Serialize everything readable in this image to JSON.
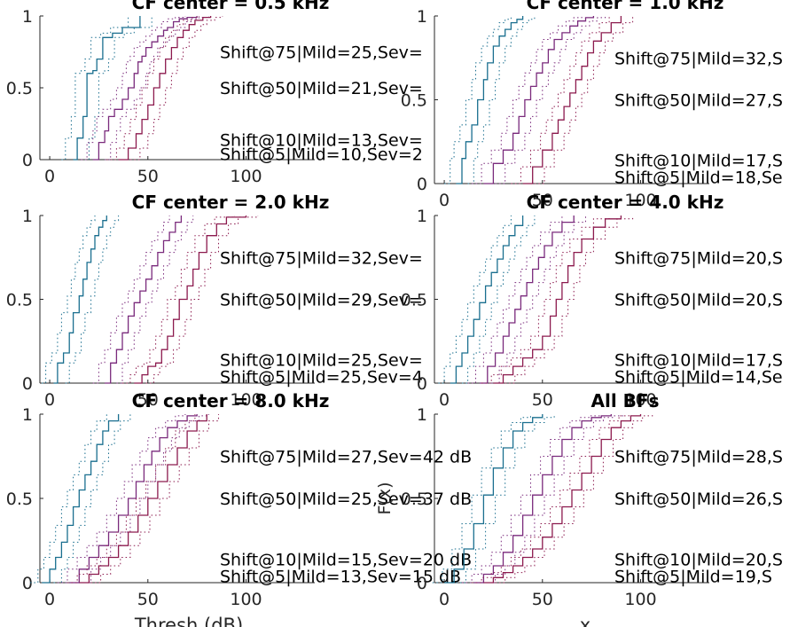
{
  "figure": {
    "xlabel_left": "Thresh (dB)",
    "xlabel_right": "x",
    "ylabel_right": "F(x)"
  },
  "colors": {
    "normal": "#1a6f8f",
    "mild": "#7a2a7c",
    "severe": "#8c1a4e",
    "axis": "#262626"
  },
  "chart_data": [
    {
      "type": "line",
      "title": "CF center = 0.5 kHz",
      "xlim": [
        -5,
        135
      ],
      "ylim": [
        0,
        1
      ],
      "xticks": [
        "0",
        "50",
        "100"
      ],
      "yticks": [
        "0",
        "0.5",
        "1"
      ],
      "annotations": [
        "Shift@75|Mild=25,Sev=",
        "Shift@50|Mild=21,Sev=",
        "Shift@10|Mild=13,Sev=",
        "Shift@5|Mild=10,Sev=2"
      ],
      "series": [
        {
          "group": "normal",
          "x": [
            12,
            14,
            17,
            19,
            20,
            22,
            24,
            27,
            32,
            37,
            46
          ],
          "y": [
            0,
            0.15,
            0.3,
            0.6,
            0.6,
            0.62,
            0.7,
            0.85,
            0.88,
            0.92,
            1
          ]
        },
        {
          "group": "mild",
          "x": [
            22,
            25,
            28,
            30,
            33,
            37,
            40,
            43,
            45,
            47,
            49,
            52,
            55,
            58,
            60,
            63,
            66,
            70,
            75
          ],
          "y": [
            0,
            0.12,
            0.2,
            0.3,
            0.35,
            0.42,
            0.5,
            0.6,
            0.68,
            0.72,
            0.78,
            0.82,
            0.86,
            0.9,
            0.92,
            0.96,
            0.98,
            0.99,
            1
          ]
        },
        {
          "group": "severe",
          "x": [
            35,
            40,
            44,
            47,
            50,
            53,
            56,
            59,
            62,
            65,
            68,
            71,
            74,
            78,
            82
          ],
          "y": [
            0,
            0.08,
            0.18,
            0.28,
            0.38,
            0.5,
            0.6,
            0.7,
            0.78,
            0.85,
            0.9,
            0.94,
            0.97,
            0.99,
            1
          ]
        }
      ]
    },
    {
      "type": "line",
      "title": "CF center = 1.0 kHz",
      "xlim": [
        -5,
        135
      ],
      "ylim": [
        0,
        1
      ],
      "xticks": [
        "0",
        "50",
        "100"
      ],
      "yticks": [
        "0",
        "0.5",
        "1"
      ],
      "annotations": [
        "Shift@75|Mild=32,S",
        "Shift@50|Mild=27,S",
        "Shift@10|Mild=17,S",
        "Shift@5|Mild=18,Se"
      ],
      "series": [
        {
          "group": "normal",
          "x": [
            6,
            9,
            11,
            14,
            17,
            20,
            22,
            25,
            28,
            31,
            34,
            37,
            40
          ],
          "y": [
            0,
            0.15,
            0.25,
            0.35,
            0.5,
            0.62,
            0.72,
            0.82,
            0.88,
            0.92,
            0.96,
            0.98,
            1
          ]
        },
        {
          "group": "mild",
          "x": [
            20,
            25,
            30,
            35,
            38,
            41,
            44,
            47,
            50,
            53,
            56,
            60,
            64,
            68,
            72,
            76
          ],
          "y": [
            0,
            0.12,
            0.2,
            0.3,
            0.4,
            0.5,
            0.58,
            0.66,
            0.72,
            0.8,
            0.86,
            0.9,
            0.94,
            0.97,
            0.99,
            1
          ]
        },
        {
          "group": "severe",
          "x": [
            40,
            45,
            50,
            55,
            58,
            61,
            64,
            67,
            70,
            73,
            76,
            80,
            85,
            90
          ],
          "y": [
            0,
            0.1,
            0.2,
            0.3,
            0.38,
            0.46,
            0.54,
            0.62,
            0.7,
            0.78,
            0.85,
            0.9,
            0.96,
            1
          ]
        }
      ]
    },
    {
      "type": "line",
      "title": "CF center = 2.0 kHz",
      "xlim": [
        -5,
        135
      ],
      "ylim": [
        0,
        1
      ],
      "xticks": [
        "0",
        "50",
        "100"
      ],
      "yticks": [
        "0",
        "0.5",
        "1"
      ],
      "annotations": [
        "Shift@75|Mild=32,Sev=",
        "Shift@50|Mild=29,Sev=",
        "Shift@10|Mild=25,Sev=",
        "Shift@5|Mild=25,Sev=4"
      ],
      "series": [
        {
          "group": "normal",
          "x": [
            2,
            4,
            7,
            10,
            12,
            15,
            17,
            19,
            21,
            23,
            25,
            27,
            29
          ],
          "y": [
            0,
            0.12,
            0.18,
            0.3,
            0.42,
            0.52,
            0.62,
            0.72,
            0.8,
            0.88,
            0.93,
            0.97,
            1
          ]
        },
        {
          "group": "mild",
          "x": [
            28,
            31,
            34,
            37,
            40,
            43,
            46,
            49,
            52,
            55,
            58,
            61,
            64,
            67
          ],
          "y": [
            0,
            0.12,
            0.2,
            0.3,
            0.4,
            0.48,
            0.55,
            0.62,
            0.7,
            0.78,
            0.85,
            0.9,
            0.96,
            1
          ]
        },
        {
          "group": "severe",
          "x": [
            43,
            47,
            50,
            54,
            57,
            60,
            63,
            66,
            70,
            73,
            76,
            80,
            85,
            90,
            100
          ],
          "y": [
            0,
            0.05,
            0.1,
            0.12,
            0.2,
            0.28,
            0.38,
            0.5,
            0.58,
            0.68,
            0.78,
            0.88,
            0.95,
            0.99,
            1
          ]
        }
      ]
    },
    {
      "type": "line",
      "title": "CF center = 4.0 kHz",
      "xlim": [
        -5,
        135
      ],
      "ylim": [
        0,
        1
      ],
      "xticks": [
        "0",
        "50",
        "100"
      ],
      "yticks": [
        "0",
        "0.5",
        "1"
      ],
      "annotations": [
        "Shift@75|Mild=20,S",
        "Shift@50|Mild=20,S",
        "Shift@10|Mild=17,S",
        "Shift@5|Mild=14,Se"
      ],
      "series": [
        {
          "group": "normal",
          "x": [
            3,
            6,
            9,
            12,
            15,
            18,
            21,
            24,
            27,
            30,
            33,
            36,
            40
          ],
          "y": [
            0,
            0.1,
            0.18,
            0.28,
            0.38,
            0.48,
            0.58,
            0.66,
            0.74,
            0.82,
            0.88,
            0.94,
            1
          ]
        },
        {
          "group": "mild",
          "x": [
            18,
            22,
            26,
            30,
            33,
            36,
            39,
            42,
            45,
            48,
            51,
            55,
            60,
            66
          ],
          "y": [
            0,
            0.1,
            0.18,
            0.28,
            0.36,
            0.44,
            0.52,
            0.6,
            0.68,
            0.75,
            0.82,
            0.9,
            0.96,
            1
          ]
        },
        {
          "group": "severe",
          "x": [
            25,
            30,
            35,
            40,
            45,
            50,
            54,
            57,
            60,
            63,
            66,
            70,
            76,
            82,
            90
          ],
          "y": [
            0,
            0.05,
            0.1,
            0.15,
            0.2,
            0.28,
            0.4,
            0.5,
            0.6,
            0.7,
            0.78,
            0.86,
            0.93,
            0.98,
            1
          ]
        }
      ]
    },
    {
      "type": "line",
      "title": "CF center = 8.0 kHz",
      "xlim": [
        -5,
        135
      ],
      "ylim": [
        0,
        1
      ],
      "xticks": [
        "0",
        "50",
        "100"
      ],
      "yticks": [
        "0",
        "0.5",
        "1"
      ],
      "annotations": [
        "Shift@75|Mild=27,Sev=42 dB",
        "Shift@50|Mild=25,Sev=37 dB",
        "Shift@10|Mild=15,Sev=20 dB",
        "Shift@5|Mild=13,Sev=15 dB"
      ],
      "series": [
        {
          "group": "normal",
          "x": [
            -4,
            0,
            3,
            6,
            9,
            12,
            15,
            18,
            21,
            24,
            27,
            30,
            35
          ],
          "y": [
            0,
            0.08,
            0.15,
            0.24,
            0.34,
            0.45,
            0.55,
            0.64,
            0.72,
            0.82,
            0.9,
            0.96,
            1
          ]
        },
        {
          "group": "mild",
          "x": [
            10,
            15,
            20,
            25,
            30,
            35,
            40,
            44,
            48,
            52,
            56,
            60,
            65,
            70,
            75
          ],
          "y": [
            0,
            0.08,
            0.15,
            0.22,
            0.3,
            0.4,
            0.5,
            0.6,
            0.7,
            0.78,
            0.86,
            0.92,
            0.96,
            0.99,
            1
          ]
        },
        {
          "group": "severe",
          "x": [
            15,
            20,
            25,
            30,
            35,
            40,
            45,
            50,
            55,
            60,
            65,
            70,
            75,
            80
          ],
          "y": [
            0,
            0.05,
            0.1,
            0.15,
            0.22,
            0.3,
            0.4,
            0.5,
            0.6,
            0.7,
            0.8,
            0.9,
            0.96,
            1
          ]
        }
      ]
    },
    {
      "type": "line",
      "title": "All BFs",
      "xlim": [
        -5,
        135
      ],
      "ylim": [
        0,
        1
      ],
      "xticks": [
        "0",
        "50",
        "100"
      ],
      "yticks": [
        "0",
        "0.5",
        "1"
      ],
      "annotations": [
        "Shift@75|Mild=28,S",
        "Shift@50|Mild=26,S",
        "Shift@10|Mild=20,S",
        "Shift@5|Mild=19,S"
      ],
      "series": [
        {
          "group": "normal",
          "x": [
            0,
            5,
            10,
            15,
            20,
            25,
            30,
            35,
            40,
            45,
            50
          ],
          "y": [
            0,
            0.08,
            0.2,
            0.35,
            0.52,
            0.68,
            0.8,
            0.9,
            0.95,
            0.98,
            1
          ]
        },
        {
          "group": "mild",
          "x": [
            15,
            20,
            25,
            30,
            35,
            40,
            45,
            50,
            55,
            60,
            65,
            70,
            75,
            80,
            85
          ],
          "y": [
            0,
            0.05,
            0.1,
            0.18,
            0.28,
            0.4,
            0.52,
            0.64,
            0.75,
            0.85,
            0.92,
            0.96,
            0.98,
            0.99,
            1
          ]
        },
        {
          "group": "severe",
          "x": [
            20,
            25,
            30,
            35,
            40,
            45,
            50,
            55,
            60,
            65,
            70,
            75,
            80,
            85,
            90,
            95,
            100
          ],
          "y": [
            0,
            0.03,
            0.06,
            0.1,
            0.15,
            0.2,
            0.27,
            0.35,
            0.45,
            0.55,
            0.65,
            0.75,
            0.85,
            0.92,
            0.96,
            0.99,
            1
          ]
        }
      ]
    }
  ]
}
